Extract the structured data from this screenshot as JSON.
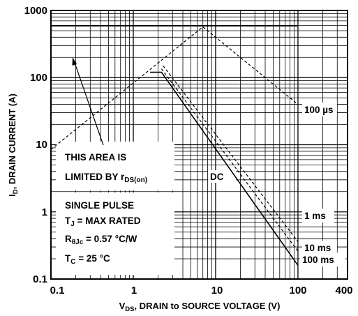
{
  "chart_data": {
    "type": "line",
    "title": "",
    "x_scale": "log",
    "y_scale": "log",
    "xlim": [
      0.1,
      400
    ],
    "ylim": [
      0.1,
      1000
    ],
    "grid": true,
    "x_ticks": [
      "0.1",
      "1",
      "10",
      "100",
      "400"
    ],
    "y_ticks": [
      "1000",
      "100",
      "10",
      "1",
      "0.1"
    ],
    "xlabel": {
      "main": "V",
      "sub": "DS",
      "rest": ", DRAIN to SOURCE VOLTAGE (V)"
    },
    "ylabel": {
      "main": "I",
      "sub": "D",
      "rest": ", DRAIN CURRENT (A)"
    },
    "series": [
      {
        "name": "100 µs",
        "style": "dashed",
        "x": [
          0.1,
          7,
          100
        ],
        "y": [
          8.5,
          570,
          40
        ]
      },
      {
        "name": "1 ms",
        "style": "dashed",
        "x": [
          2.3,
          100
        ],
        "y": [
          150,
          0.36
        ]
      },
      {
        "name": "10 ms",
        "style": "dashed",
        "x": [
          2.2,
          100
        ],
        "y": [
          135,
          0.26
        ]
      },
      {
        "name": "DC",
        "style": "solid",
        "x": [
          1.6,
          2.2,
          100
        ],
        "y": [
          120,
          120,
          0.16
        ]
      },
      {
        "name": "",
        "style": "solid",
        "x": [
          0.1,
          100
        ],
        "y": [
          590,
          590
        ]
      }
    ],
    "labels": {
      "us100": "100 µs",
      "ms1": "1 ms",
      "ms10": "10 ms",
      "ms100": "100 ms",
      "dc": "DC"
    },
    "annotations": {
      "area_line1": "THIS AREA IS",
      "area_line2_main": "LIMITED BY r",
      "area_line2_sub": "DS(on)",
      "pulse1": "SINGLE PULSE",
      "tj_main": "T",
      "tj_sub": "J",
      "tj_rest": " = MAX RATED",
      "r_main": "R",
      "r_sub": "θJc",
      "r_rest": " = 0.57 °C/W",
      "tc_main": "T",
      "tc_sub": "C",
      "tc_rest": " = 25 °C"
    }
  }
}
